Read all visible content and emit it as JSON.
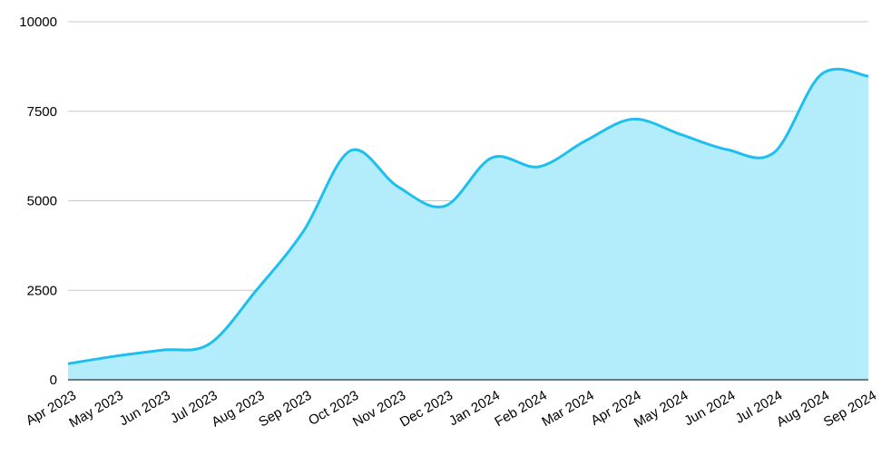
{
  "chart_data": {
    "type": "area",
    "categories": [
      "Apr 2023",
      "May 2023",
      "Jun 2023",
      "Jul 2023",
      "Aug 2023",
      "Sep 2023",
      "Oct 2023",
      "Nov 2023",
      "Dec 2023",
      "Jan 2024",
      "Feb 2024",
      "Mar 2024",
      "Apr 2024",
      "May 2024",
      "Jun 2024",
      "Jul 2024",
      "Aug 2024",
      "Sep 2024"
    ],
    "values": [
      450,
      660,
      830,
      1000,
      2500,
      4150,
      6400,
      5400,
      4850,
      6200,
      5950,
      6680,
      7280,
      6860,
      6430,
      6350,
      8530,
      8480
    ],
    "color": "#1ebff0",
    "fill": "#b3ecfb",
    "ylim": [
      0,
      10000
    ],
    "yticks": [
      0,
      2500,
      5000,
      7500,
      10000
    ],
    "grid": true
  }
}
